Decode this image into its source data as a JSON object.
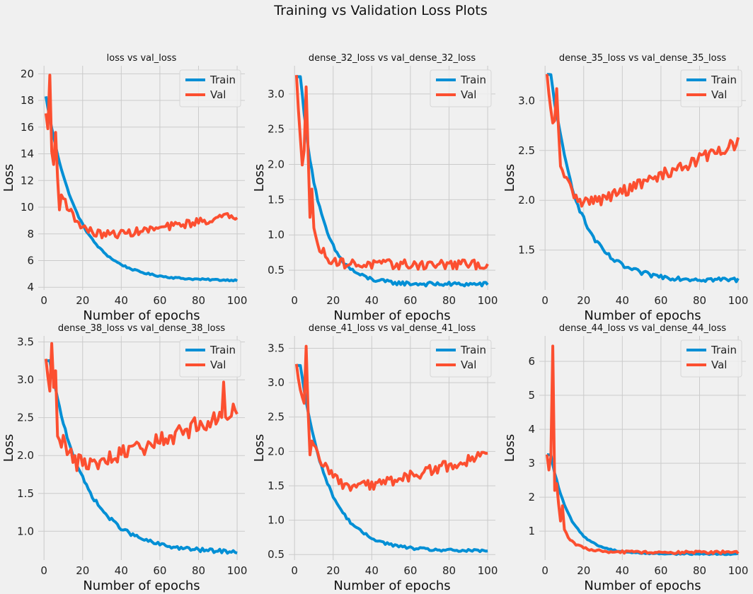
{
  "figure_title": "Training vs Validation Loss Plots",
  "colors": {
    "train": "#008fd5",
    "val": "#fc4f30",
    "background": "#f0f0f0",
    "grid": "#cbcbcb"
  },
  "chart_data": [
    {
      "type": "line",
      "title": "loss vs val_loss",
      "xlabel": "Number of epochs",
      "ylabel": "Loss",
      "xlim": [
        -3,
        104
      ],
      "ylim": [
        3.8,
        20.6
      ],
      "xticks": [
        0,
        20,
        40,
        60,
        80,
        100
      ],
      "yticks": [
        4,
        6,
        8,
        10,
        12,
        14,
        16,
        18,
        20
      ],
      "legend_position": "top-right",
      "grid": true,
      "series": [
        {
          "name": "Train",
          "key": "train",
          "shape": "decay",
          "start": 18.3,
          "end": 4.5,
          "tau": 16,
          "noise": 0.06
        },
        {
          "name": "Val",
          "key": "val",
          "shape": "u",
          "start": 17.0,
          "min": 7.6,
          "min_epoch": 26,
          "end": 9.4,
          "tau": 5,
          "noise": 0.3,
          "spikes": [
            [
              3,
              19.9
            ],
            [
              5,
              13.2
            ],
            [
              6,
              15.6
            ],
            [
              8,
              9.8
            ]
          ]
        }
      ]
    },
    {
      "type": "line",
      "title": "dense_32_loss vs val_dense_32_loss",
      "xlabel": "Number of epochs",
      "ylabel": "Loss",
      "xlim": [
        -3,
        104
      ],
      "ylim": [
        0.22,
        3.4
      ],
      "xticks": [
        0,
        20,
        40,
        60,
        80,
        100
      ],
      "yticks": [
        0.5,
        1.0,
        1.5,
        2.0,
        2.5,
        3.0
      ],
      "legend_position": "top-right",
      "grid": true,
      "series": [
        {
          "name": "Train",
          "key": "train",
          "shape": "decay",
          "start": 3.25,
          "end": 0.3,
          "tau": 10,
          "noise": 0.03,
          "flat": 3
        },
        {
          "name": "Val",
          "key": "val",
          "shape": "decay",
          "start": 3.26,
          "end": 0.58,
          "tau": 5,
          "noise": 0.07,
          "spikes": [
            [
              5,
              2.2
            ],
            [
              6,
              3.1
            ],
            [
              7,
              2.2
            ],
            [
              8,
              1.25
            ],
            [
              9,
              1.65
            ],
            [
              10,
              1.1
            ]
          ]
        }
      ]
    },
    {
      "type": "line",
      "title": "dense_35_loss vs val_dense_35_loss",
      "xlabel": "Number of epochs",
      "ylabel": "Loss",
      "xlim": [
        -3,
        104
      ],
      "ylim": [
        1.1,
        3.35
      ],
      "xticks": [
        0,
        20,
        40,
        60,
        80,
        100
      ],
      "yticks": [
        1.5,
        2.0,
        2.5,
        3.0
      ],
      "legend_position": "top-right",
      "grid": true,
      "series": [
        {
          "name": "Train",
          "key": "train",
          "shape": "decay",
          "start": 3.26,
          "end": 1.2,
          "tau": 14,
          "noise": 0.025,
          "flat": 3
        },
        {
          "name": "Val",
          "key": "val",
          "shape": "u",
          "start": 3.26,
          "min": 1.92,
          "min_epoch": 20,
          "end": 2.58,
          "tau": 4,
          "noise": 0.06,
          "spikes": [
            [
              5,
              2.8
            ],
            [
              6,
              3.12
            ],
            [
              7,
              2.7
            ],
            [
              9,
              2.3
            ]
          ]
        }
      ]
    },
    {
      "type": "line",
      "title": "dense_38_loss vs val_dense_38_loss",
      "xlabel": "Number of epochs",
      "ylabel": "Loss",
      "xlim": [
        -3,
        104
      ],
      "ylim": [
        0.62,
        3.58
      ],
      "xticks": [
        0,
        20,
        40,
        60,
        80,
        100
      ],
      "yticks": [
        1.0,
        1.5,
        2.0,
        2.5,
        3.0,
        3.5
      ],
      "legend_position": "top-right",
      "grid": true,
      "series": [
        {
          "name": "Train",
          "key": "train",
          "shape": "decay",
          "start": 3.25,
          "end": 0.72,
          "tau": 18,
          "noise": 0.025,
          "flat": 3
        },
        {
          "name": "Val",
          "key": "val",
          "shape": "u",
          "start": 3.26,
          "min": 1.8,
          "min_epoch": 20,
          "end": 2.6,
          "tau": 4,
          "noise": 0.12,
          "spikes": [
            [
              4,
              3.48
            ],
            [
              5,
              2.9
            ],
            [
              6,
              3.12
            ],
            [
              93,
              2.97
            ],
            [
              96,
              2.5
            ]
          ]
        }
      ]
    },
    {
      "type": "line",
      "title": "dense_41_loss vs val_dense_41_loss",
      "xlabel": "Number of epochs",
      "ylabel": "Loss",
      "xlim": [
        -3,
        104
      ],
      "ylim": [
        0.42,
        3.68
      ],
      "xticks": [
        0,
        20,
        40,
        60,
        80,
        100
      ],
      "yticks": [
        0.5,
        1.0,
        1.5,
        2.0,
        2.5,
        3.0,
        3.5
      ],
      "legend_position": "top-right",
      "grid": true,
      "series": [
        {
          "name": "Train",
          "key": "train",
          "shape": "decay",
          "start": 3.25,
          "end": 0.55,
          "tau": 14,
          "noise": 0.02,
          "flat": 3
        },
        {
          "name": "Val",
          "key": "val",
          "shape": "u",
          "start": 3.26,
          "min": 1.4,
          "min_epoch": 28,
          "end": 1.95,
          "tau": 4,
          "noise": 0.08,
          "spikes": [
            [
              5,
              2.7
            ],
            [
              6,
              3.53
            ],
            [
              7,
              2.6
            ],
            [
              8,
              1.95
            ]
          ]
        }
      ]
    },
    {
      "type": "line",
      "title": "dense_44_loss vs val_dense_44_loss",
      "xlabel": "Number of epochs",
      "ylabel": "Loss",
      "xlim": [
        -3,
        104
      ],
      "ylim": [
        0.15,
        6.75
      ],
      "xticks": [
        0,
        20,
        40,
        60,
        80,
        100
      ],
      "yticks": [
        1,
        2,
        3,
        4,
        5,
        6
      ],
      "legend_position": "top-right",
      "grid": true,
      "series": [
        {
          "name": "Train",
          "key": "train",
          "shape": "decay",
          "start": 3.25,
          "end": 0.33,
          "tau": 10,
          "noise": 0.02,
          "flat": 3
        },
        {
          "name": "Val",
          "key": "val",
          "shape": "decay",
          "start": 3.25,
          "end": 0.38,
          "tau": 6,
          "noise": 0.04,
          "spikes": [
            [
              3,
              3.2
            ],
            [
              4,
              6.45
            ],
            [
              5,
              2.2
            ],
            [
              6,
              2.4
            ],
            [
              7,
              1.8
            ],
            [
              8,
              1.3
            ],
            [
              9,
              1.75
            ],
            [
              10,
              1.05
            ]
          ]
        }
      ]
    }
  ]
}
